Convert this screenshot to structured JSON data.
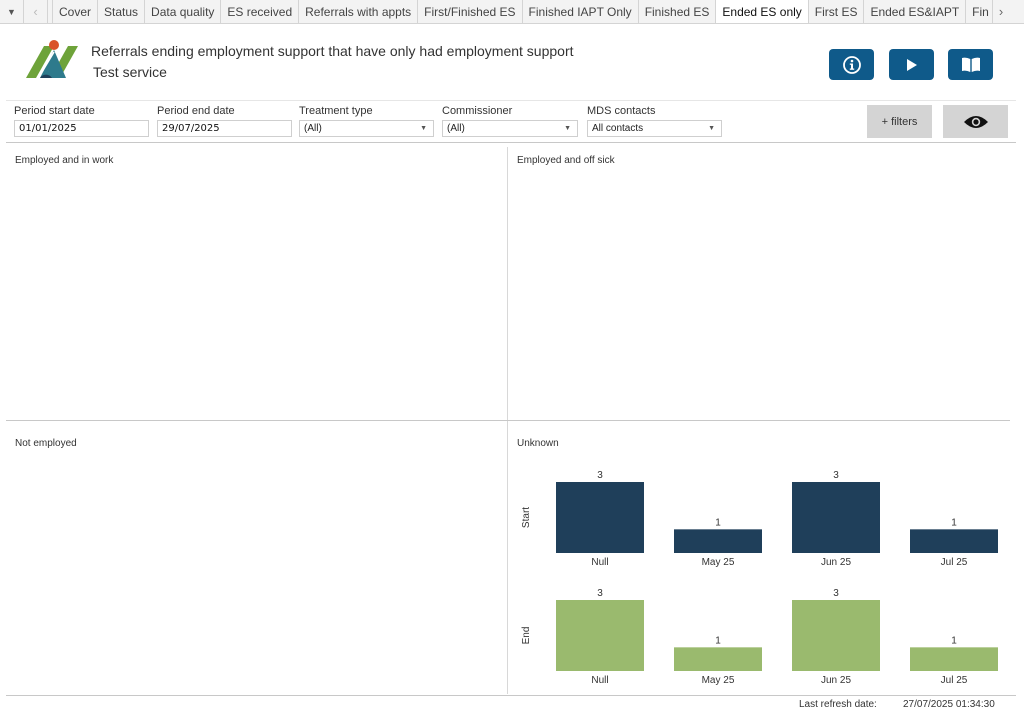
{
  "tabs": {
    "menu_icon": "caret-down",
    "prev_icon": "chevron-left",
    "next_icon": "chevron-right",
    "items": [
      {
        "label": "Cover",
        "active": false
      },
      {
        "label": "Status",
        "active": false
      },
      {
        "label": "Data quality",
        "active": false
      },
      {
        "label": "ES received",
        "active": false
      },
      {
        "label": "Referrals with appts",
        "active": false
      },
      {
        "label": "First/Finished ES",
        "active": false
      },
      {
        "label": "Finished IAPT Only",
        "active": false
      },
      {
        "label": "Finished ES",
        "active": false
      },
      {
        "label": "Ended ES only",
        "active": true
      },
      {
        "label": "First ES",
        "active": false
      },
      {
        "label": "Ended ES&IAPT",
        "active": false
      },
      {
        "label": "Fin",
        "active": false
      }
    ]
  },
  "header": {
    "title": "Referrals ending employment support that have only had employment support",
    "subtitle": "Test service",
    "buttons": [
      {
        "name": "info",
        "icon": "info-circle"
      },
      {
        "name": "play",
        "icon": "play"
      },
      {
        "name": "guide",
        "icon": "open-book"
      }
    ],
    "button_color": "#0f5a8a"
  },
  "filters": {
    "start_date": {
      "label": "Period start date",
      "value": "01/01/2025"
    },
    "end_date": {
      "label": "Period end date",
      "value": "29/07/2025"
    },
    "treatment_type": {
      "label": "Treatment type",
      "value": "(All)"
    },
    "commissioner": {
      "label": "Commissioner",
      "value": "(All)"
    },
    "mds_contacts": {
      "label": "MDS contacts",
      "value": "All contacts"
    },
    "more_filters_label": "+ filters",
    "eye_icon": "eye"
  },
  "quadrants": {
    "top_left": "Employed and in work",
    "top_right": "Employed and off sick",
    "bottom_left": "Not employed",
    "bottom_right": "Unknown"
  },
  "chart_data": {
    "type": "bar",
    "title": "Unknown",
    "categories": [
      "Null",
      "May 25",
      "Jun 25",
      "Jul 25"
    ],
    "series": [
      {
        "name": "Start",
        "values": [
          3,
          1,
          3,
          1
        ],
        "color": "#1f3f5a"
      },
      {
        "name": "End",
        "values": [
          3,
          1,
          3,
          1
        ],
        "color": "#9aba6e"
      }
    ],
    "ylim": [
      0,
      3
    ],
    "grid": false,
    "data_labels": true
  },
  "footer": {
    "refresh_label": "Last refresh date:",
    "refresh_value": "27/07/2025 01:34:30"
  }
}
